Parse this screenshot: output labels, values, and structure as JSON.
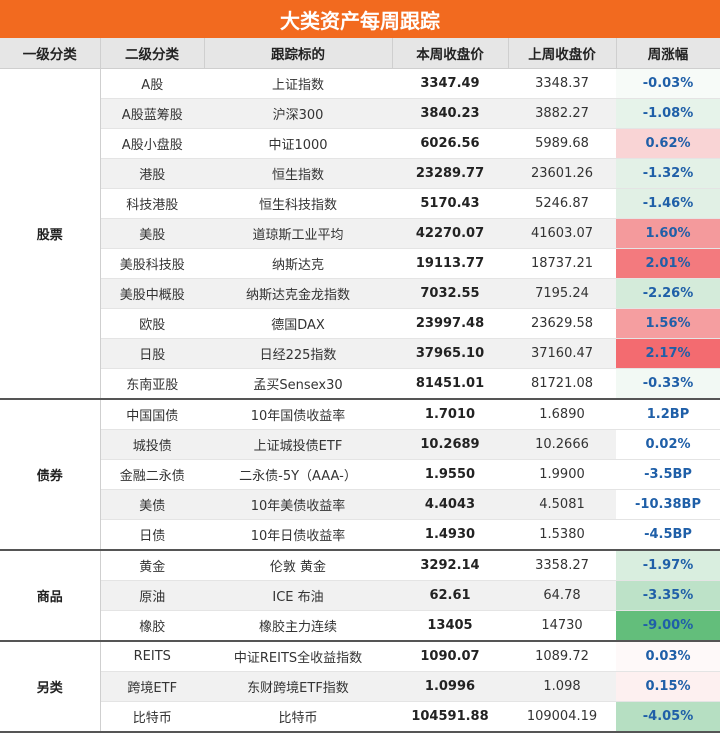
{
  "title": "大类资产每周跟踪",
  "headers": [
    "一级分类",
    "二级分类",
    "跟踪标的",
    "本周收盘价",
    "上周收盘价",
    "周涨幅"
  ],
  "groups": [
    {
      "name": "股票",
      "rows": [
        {
          "sub": "A股",
          "target": "上证指数",
          "cur": "3347.49",
          "prev": "3348.37",
          "chg": "-0.03%",
          "bg": "#f7fbf8"
        },
        {
          "sub": "A股蓝筹股",
          "target": "沪深300",
          "cur": "3840.23",
          "prev": "3882.27",
          "chg": "-1.08%",
          "bg": "#e6f3ea"
        },
        {
          "sub": "A股小盘股",
          "target": "中证1000",
          "cur": "6026.56",
          "prev": "5989.68",
          "chg": "0.62%",
          "bg": "#f9d4d5"
        },
        {
          "sub": "港股",
          "target": "恒生指数",
          "cur": "23289.77",
          "prev": "23601.26",
          "chg": "-1.32%",
          "bg": "#e3f1e7"
        },
        {
          "sub": "科技港股",
          "target": "恒生科技指数",
          "cur": "5170.43",
          "prev": "5246.87",
          "chg": "-1.46%",
          "bg": "#e1f0e5"
        },
        {
          "sub": "美股",
          "target": "道琼斯工业平均",
          "cur": "42270.07",
          "prev": "41603.07",
          "chg": "1.60%",
          "bg": "#f49a9c"
        },
        {
          "sub": "美股科技股",
          "target": "纳斯达克",
          "cur": "19113.77",
          "prev": "18737.21",
          "chg": "2.01%",
          "bg": "#f37a7e"
        },
        {
          "sub": "美股中概股",
          "target": "纳斯达克金龙指数",
          "cur": "7032.55",
          "prev": "7195.24",
          "chg": "-2.26%",
          "bg": "#d4ebda"
        },
        {
          "sub": "欧股",
          "target": "德国DAX",
          "cur": "23997.48",
          "prev": "23629.58",
          "chg": "1.56%",
          "bg": "#f59ea0"
        },
        {
          "sub": "日股",
          "target": "日经225指数",
          "cur": "37965.10",
          "prev": "37160.47",
          "chg": "2.17%",
          "bg": "#f36b70"
        },
        {
          "sub": "东南亚股",
          "target": "孟买Sensex30",
          "cur": "81451.01",
          "prev": "81721.08",
          "chg": "-0.33%",
          "bg": "#f2f9f4"
        }
      ]
    },
    {
      "name": "债券",
      "rows": [
        {
          "sub": "中国国债",
          "target": "10年国债收益率",
          "cur": "1.7010",
          "prev": "1.6890",
          "chg": "1.2BP",
          "bg": "#ffffff"
        },
        {
          "sub": "城投债",
          "target": "上证城投债ETF",
          "cur": "10.2689",
          "prev": "10.2666",
          "chg": "0.02%",
          "bg": "#ffffff"
        },
        {
          "sub": "金融二永债",
          "target": "二永债-5Y（AAA-）",
          "cur": "1.9550",
          "prev": "1.9900",
          "chg": "-3.5BP",
          "bg": "#ffffff"
        },
        {
          "sub": "美债",
          "target": "10年美债收益率",
          "cur": "4.4043",
          "prev": "4.5081",
          "chg": "-10.38BP",
          "bg": "#ffffff"
        },
        {
          "sub": "日债",
          "target": "10年日债收益率",
          "cur": "1.4930",
          "prev": "1.5380",
          "chg": "-4.5BP",
          "bg": "#ffffff"
        }
      ]
    },
    {
      "name": "商品",
      "rows": [
        {
          "sub": "黄金",
          "target": "伦敦 黄金",
          "cur": "3292.14",
          "prev": "3358.27",
          "chg": "-1.97%",
          "bg": "#d9eedf"
        },
        {
          "sub": "原油",
          "target": "ICE 布油",
          "cur": "62.61",
          "prev": "64.78",
          "chg": "-3.35%",
          "bg": "#bde2c8"
        },
        {
          "sub": "橡胶",
          "target": "橡胶主力连续",
          "cur": "13405",
          "prev": "14730",
          "chg": "-9.00%",
          "bg": "#63be7b"
        }
      ]
    },
    {
      "name": "另类",
      "rows": [
        {
          "sub": "REITS",
          "target": "中证REITS全收益指数",
          "cur": "1090.07",
          "prev": "1089.72",
          "chg": "0.03%",
          "bg": "#fef9f9"
        },
        {
          "sub": "跨境ETF",
          "target": "东财跨境ETF指数",
          "cur": "1.0996",
          "prev": "1.098",
          "chg": "0.15%",
          "bg": "#fdf0f0"
        },
        {
          "sub": "比特币",
          "target": "比特币",
          "cur": "104591.88",
          "prev": "109004.19",
          "chg": "-4.05%",
          "bg": "#b6dfc2"
        }
      ]
    }
  ]
}
